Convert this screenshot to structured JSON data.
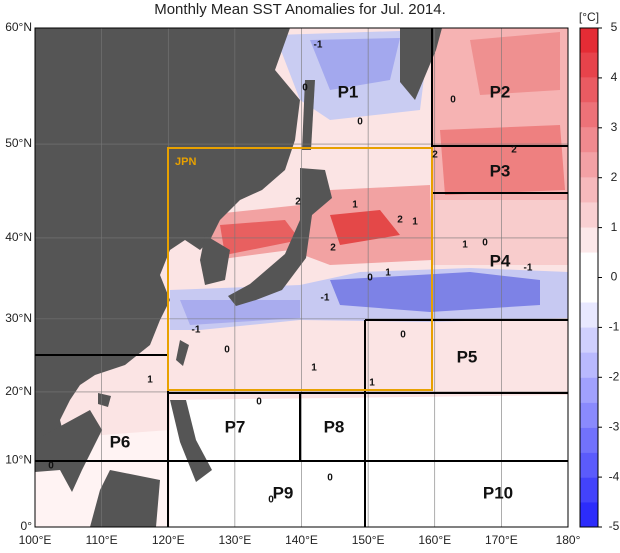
{
  "header": {
    "title": "Monthly Mean SST Anomalies for Jul. 2014."
  },
  "map": {
    "lon_ticks": [
      {
        "value": 100,
        "label": "100°E"
      },
      {
        "value": 110,
        "label": "110°E"
      },
      {
        "value": 120,
        "label": "120°E"
      },
      {
        "value": 130,
        "label": "130°E"
      },
      {
        "value": 140,
        "label": "140°E"
      },
      {
        "value": 150,
        "label": "150°E"
      },
      {
        "value": 160,
        "label": "160°E"
      },
      {
        "value": 170,
        "label": "170°E"
      },
      {
        "value": 180,
        "label": "180°"
      }
    ],
    "lat_ticks": [
      {
        "value": 0,
        "label": "0°"
      },
      {
        "value": 10,
        "label": "10°N"
      },
      {
        "value": 20,
        "label": "20°N"
      },
      {
        "value": 30,
        "label": "30°N"
      },
      {
        "value": 40,
        "label": "40°N"
      },
      {
        "value": 50,
        "label": "50°N"
      },
      {
        "value": 60,
        "label": "60°N"
      }
    ],
    "box_label": "JPN",
    "regions": [
      "P1",
      "P2",
      "P3",
      "P4",
      "P5",
      "P6",
      "P7",
      "P8",
      "P9",
      "P10"
    ],
    "contour_labels": [
      "-1",
      "0",
      "0",
      "0",
      "2",
      "1",
      "2",
      "1",
      "2",
      "1",
      "0",
      "-1",
      "0",
      "1",
      "-1",
      "-1",
      "0",
      "0",
      "1",
      "1",
      "1",
      "0",
      "0",
      "0",
      "0",
      "2",
      "2"
    ]
  },
  "colorbar": {
    "unit": "[°C]",
    "lim": [
      -5,
      5
    ],
    "ticks": [
      5,
      4,
      3,
      2,
      1,
      0,
      -1,
      -2,
      -3,
      -4,
      -5
    ]
  }
}
